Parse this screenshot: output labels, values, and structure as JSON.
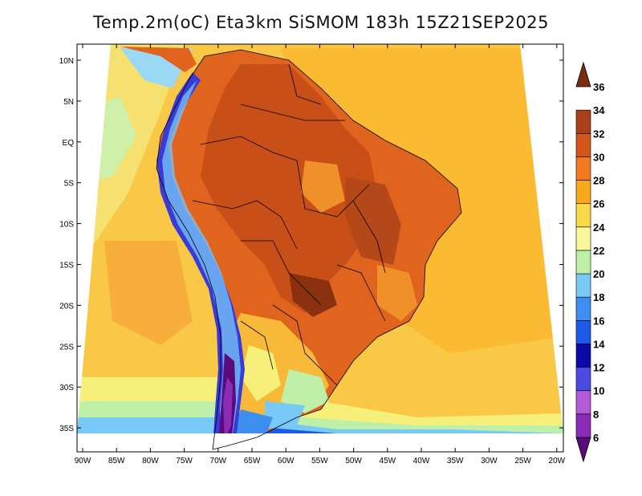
{
  "title": "Temp.2m(oC) Eta3km SiSMOM 183h 15Z21SEP2025",
  "map": {
    "lon_ticks": [
      "90W",
      "85W",
      "80W",
      "75W",
      "70W",
      "65W",
      "60W",
      "55W",
      "50W",
      "45W",
      "40W",
      "35W",
      "30W",
      "25W",
      "20W"
    ],
    "lat_ticks": [
      "10N",
      "5N",
      "EQ",
      "5S",
      "10S",
      "15S",
      "20S",
      "25S",
      "30S",
      "35S"
    ],
    "lon_range": [
      -91,
      -20
    ],
    "lat_range": [
      -38,
      12
    ]
  },
  "colorbar": {
    "labels": [
      "6",
      "8",
      "10",
      "12",
      "14",
      "16",
      "18",
      "20",
      "22",
      "24",
      "26",
      "28",
      "30",
      "32",
      "34",
      "36"
    ],
    "colors": [
      "#5a0a7a",
      "#8a2cb5",
      "#b25ad8",
      "#4a4ae0",
      "#0a0aa8",
      "#1a5ae6",
      "#3c8ef0",
      "#78c8f8",
      "#bef0a8",
      "#f6f89a",
      "#fbd84a",
      "#f9a81c",
      "#f07a20",
      "#d2561a",
      "#a8401a",
      "#7a2c10"
    ]
  },
  "legend_colors": {
    "ocean_warm": "#f9c846",
    "ocean_mild": "#f6f07a",
    "land_hot": "#e0641e",
    "land_very_hot": "#b44818",
    "andes_cold": "#3a3ad8",
    "border": "#000000"
  }
}
